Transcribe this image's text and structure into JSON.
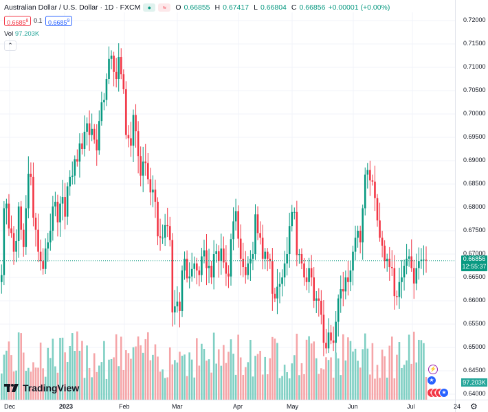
{
  "legend": {
    "symbol": "Australian Dollar / U.S. Dollar · 1D · FXCM",
    "o_label": "O",
    "o": "0.66855",
    "h_label": "H",
    "h": "0.67417",
    "l_label": "L",
    "l": "0.66804",
    "c_label": "C",
    "c": "0.66856",
    "change": "+0.00001 (+0.00%)",
    "eye_icon": "eye-icon",
    "wave_icon": "wave-icon"
  },
  "bid": "0.6685",
  "bid_sup": "8",
  "spread": "0.1",
  "ask": "0.6685",
  "ask_sup": "9",
  "volume": {
    "label": "Vol",
    "value": "97.203K"
  },
  "collapse_icon": "chevron-up-icon",
  "last_price": {
    "value": "0.66856",
    "countdown": "12:55:37"
  },
  "volume_badge": "97.203K",
  "logo_text": "TradingView",
  "colors": {
    "up": "#089981",
    "down": "#f23645",
    "vol_up": "#7fcfc3",
    "vol_down": "#f5a5a8",
    "text": "#131722"
  },
  "chart_data": {
    "type": "candlestick",
    "symbol": "AUDUSD",
    "timeframe": "1D",
    "ylim": [
      0.6395,
      0.7225
    ],
    "y_ticks": [
      "0.72000",
      "0.71500",
      "0.71000",
      "0.70500",
      "0.70000",
      "0.69500",
      "0.69000",
      "0.68500",
      "0.68000",
      "0.67500",
      "0.67000",
      "0.66500",
      "0.66000",
      "0.65500",
      "0.65000",
      "0.64500",
      "0.64000"
    ],
    "x_ticks": [
      "Dec",
      "2023",
      "Feb",
      "Mar",
      "Apr",
      "May",
      "Jun",
      "Jul",
      "24"
    ],
    "last_price": 0.66856,
    "closes": [
      0.6655,
      0.6798,
      0.6808,
      0.6755,
      0.6745,
      0.6705,
      0.6728,
      0.6802,
      0.6752,
      0.6715,
      0.6798,
      0.6872,
      0.6865,
      0.6778,
      0.6752,
      0.6705,
      0.6685,
      0.6668,
      0.6712,
      0.6725,
      0.675,
      0.6802,
      0.6812,
      0.6768,
      0.6808,
      0.6822,
      0.678,
      0.6845,
      0.6865,
      0.6868,
      0.6903,
      0.6898,
      0.6937,
      0.6925,
      0.6962,
      0.698,
      0.6955,
      0.6968,
      0.6945,
      0.6922,
      0.6985,
      0.7025,
      0.703,
      0.7075,
      0.7118,
      0.7125,
      0.709,
      0.7075,
      0.7122,
      0.7085,
      0.7053,
      0.6955,
      0.6948,
      0.6932,
      0.6998,
      0.6963,
      0.691,
      0.6868,
      0.6898,
      0.6895,
      0.686,
      0.6832,
      0.6838,
      0.6812,
      0.6738,
      0.6735,
      0.6735,
      0.6762,
      0.676,
      0.673,
      0.6575,
      0.6588,
      0.6598,
      0.6578,
      0.6665,
      0.669,
      0.6648,
      0.6652,
      0.6668,
      0.668,
      0.6665,
      0.6655,
      0.6695,
      0.6708,
      0.667,
      0.6675,
      0.665,
      0.67,
      0.6706,
      0.6685,
      0.6712,
      0.6682,
      0.6658,
      0.6652,
      0.6732,
      0.677,
      0.6792,
      0.6733,
      0.669,
      0.6672,
      0.6655,
      0.668,
      0.669,
      0.67,
      0.6785,
      0.6745,
      0.6735,
      0.669,
      0.6705,
      0.669,
      0.6685,
      0.6615,
      0.6605,
      0.663,
      0.6636,
      0.665,
      0.668,
      0.67,
      0.676,
      0.679,
      0.679,
      0.6698,
      0.67,
      0.668,
      0.665,
      0.664,
      0.667,
      0.665,
      0.66,
      0.6605,
      0.66,
      0.657,
      0.651,
      0.6498,
      0.6532,
      0.6515,
      0.651,
      0.6555,
      0.6605,
      0.6625,
      0.662,
      0.665,
      0.664,
      0.6665,
      0.6705,
      0.6735,
      0.675,
      0.6725,
      0.6798,
      0.687,
      0.688,
      0.6858,
      0.6855,
      0.682,
      0.6772,
      0.6735,
      0.6718,
      0.6685,
      0.669,
      0.6672,
      0.667,
      0.661,
      0.6608,
      0.664,
      0.665,
      0.6675,
      0.669,
      0.6695,
      0.667,
      0.6637,
      0.667,
      0.6685,
      0.6688,
      0.6688,
      0.6686
    ],
    "volume_ylim": [
      0,
      130000
    ],
    "volume_last": 97203
  }
}
